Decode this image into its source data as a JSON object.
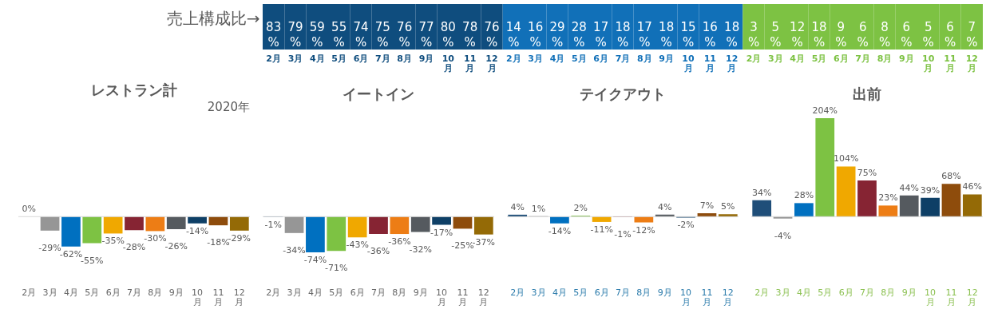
{
  "chart_data": [
    {
      "type": "heatmap",
      "categories": [
        "2月",
        "3月",
        "4月",
        "5月",
        "6月",
        "7月",
        "8月",
        "9月",
        "10月",
        "11月",
        "12月",
        "2月",
        "3月",
        "4月",
        "5月",
        "6月",
        "7月",
        "8月",
        "9月",
        "10月",
        "11月",
        "12月",
        "2月",
        "3月",
        "4月",
        "5月",
        "6月",
        "7月",
        "8月",
        "9月",
        "10月",
        "11月",
        "12月"
      ],
      "y_categories": [
        "売上構成比→"
      ],
      "cells": [
        [
          83,
          79,
          59,
          55,
          74,
          75,
          76,
          77,
          80,
          78,
          76,
          14,
          16,
          29,
          28,
          17,
          18,
          17,
          18,
          15,
          16,
          18,
          3,
          5,
          12,
          18,
          9,
          6,
          8,
          6,
          5,
          6,
          7
        ]
      ],
      "cell_labels": [
        [
          "83%",
          "79%",
          "59%",
          "55%",
          "74%",
          "75%",
          "76%",
          "77%",
          "80%",
          "78%",
          "76%",
          "14%",
          "16%",
          "29%",
          "28%",
          "17%",
          "18%",
          "17%",
          "18%",
          "15%",
          "16%",
          "18%",
          "3%",
          "5%",
          "12%",
          "18%",
          "9%",
          "6%",
          "8%",
          "6%",
          "5%",
          "6%",
          "7%"
        ]
      ],
      "colors": [
        "#0f4d7e",
        "#0f4d7e",
        "#0f4d7e",
        "#0f4d7e",
        "#0f4d7e",
        "#0f4d7e",
        "#0f4d7e",
        "#0f4d7e",
        "#0f4d7e",
        "#0f4d7e",
        "#0f4d7e",
        "#1170b8",
        "#1170b8",
        "#1170b8",
        "#1170b8",
        "#1170b8",
        "#1170b8",
        "#1170b8",
        "#1170b8",
        "#1170b8",
        "#1170b8",
        "#1170b8",
        "#7dc243",
        "#7dc243",
        "#7dc243",
        "#7dc243",
        "#7dc243",
        "#7dc243",
        "#7dc243",
        "#7dc243",
        "#7dc243",
        "#7dc243",
        "#7dc243"
      ]
    },
    {
      "type": "bar",
      "title": "レストラン計",
      "annotations": [
        "2020年"
      ],
      "categories": [
        "2月",
        "3月",
        "4月",
        "5月",
        "6月",
        "7月",
        "8月",
        "9月",
        "10月",
        "11月",
        "12月"
      ],
      "values": [
        0,
        -29,
        -62,
        -55,
        -35,
        -28,
        -30,
        -26,
        -14,
        -18,
        -29
      ],
      "value_labels": [
        "0%",
        "-29%",
        "-62%",
        "-55%",
        "-35%",
        "-28%",
        "-30%",
        "-26%",
        "-14%",
        "-18%",
        "-29%"
      ],
      "colors": [
        "#2e75b6",
        "#969696",
        "#0070c0",
        "#7dc243",
        "#f0a800",
        "#862433",
        "#ed7d15",
        "#555a5f",
        "#0e3f66",
        "#8e4c0c",
        "#946a06"
      ],
      "tick_labels": "x",
      "ref_lines": [
        {
          "axis": "y",
          "value": 0,
          "color": "#d9d9d9"
        }
      ]
    },
    {
      "type": "bar",
      "title": "イートイン",
      "categories": [
        "2月",
        "3月",
        "4月",
        "5月",
        "6月",
        "7月",
        "8月",
        "9月",
        "10月",
        "11月",
        "12月"
      ],
      "values": [
        -1,
        -34,
        -74,
        -71,
        -43,
        -36,
        -36,
        -32,
        -17,
        -25,
        -37
      ],
      "value_labels": [
        "-1%",
        "-34%",
        "-74%",
        "-71%",
        "-43%",
        "-36%",
        "-36%",
        "-32%",
        "-17%",
        "-25%",
        "-37%"
      ],
      "colors": [
        "#1f4e79",
        "#969696",
        "#0070c0",
        "#7dc243",
        "#f0a800",
        "#862433",
        "#ed7d15",
        "#555a5f",
        "#0e3f66",
        "#8e4c0c",
        "#946a06"
      ],
      "tick_labels": "x",
      "ref_lines": [
        {
          "axis": "y",
          "value": 0,
          "color": "#d9d9d9"
        }
      ]
    },
    {
      "type": "bar",
      "title": "テイクアウト",
      "categories": [
        "2月",
        "3月",
        "4月",
        "5月",
        "6月",
        "7月",
        "8月",
        "9月",
        "10月",
        "11月",
        "12月"
      ],
      "values": [
        4,
        1,
        -14,
        2,
        -11,
        -1,
        -12,
        4,
        -2,
        7,
        5
      ],
      "value_labels": [
        "4%",
        "1%",
        "-14%",
        "2%",
        "-11%",
        "-1%",
        "-12%",
        "4%",
        "-2%",
        "7%",
        "5%"
      ],
      "colors": [
        "#1f4e79",
        "#969696",
        "#0070c0",
        "#7dc243",
        "#f0a800",
        "#862433",
        "#ed7d15",
        "#555a5f",
        "#0e3f66",
        "#8e4c0c",
        "#946a06"
      ],
      "tick_labels": "x",
      "ref_lines": [
        {
          "axis": "y",
          "value": 0,
          "color": "#d9d9d9"
        }
      ]
    },
    {
      "type": "bar",
      "title": "出前",
      "categories": [
        "2月",
        "3月",
        "4月",
        "5月",
        "6月",
        "7月",
        "8月",
        "9月",
        "10月",
        "11月",
        "12月"
      ],
      "values": [
        34,
        -4,
        28,
        204,
        104,
        75,
        23,
        44,
        39,
        68,
        46
      ],
      "value_labels": [
        "34%",
        "-4%",
        "28%",
        "204%",
        "104%",
        "75%",
        "23%",
        "44%",
        "39%",
        "68%",
        "46%"
      ],
      "colors": [
        "#1f4e79",
        "#969696",
        "#0070c0",
        "#7dc243",
        "#f0a800",
        "#862433",
        "#ed7d15",
        "#555a5f",
        "#0e3f66",
        "#8e4c0c",
        "#946a06"
      ],
      "tick_labels": "x",
      "ref_lines": [
        {
          "axis": "y",
          "value": 0,
          "color": "#d9d9d9"
        }
      ]
    }
  ]
}
